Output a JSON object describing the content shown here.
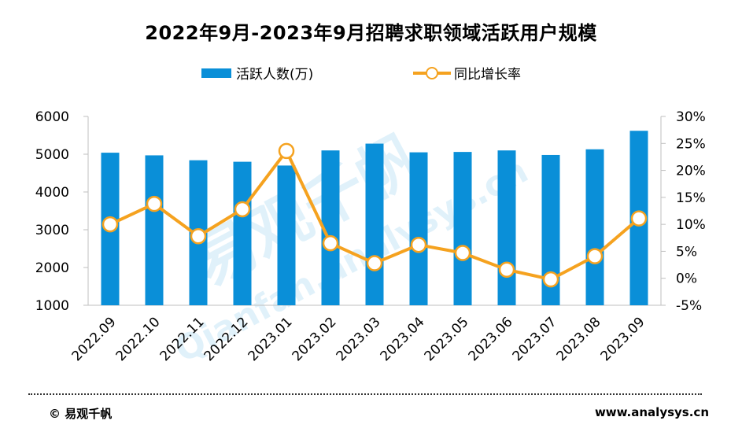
{
  "title": "2022年9月-2023年9月招聘求职领域活跃用户规模",
  "legend": {
    "bar_label": "活跃人数(万)",
    "line_label": "同比增长率"
  },
  "footer": {
    "left": "© 易观千帆",
    "right": "www.analysys.cn"
  },
  "watermark": {
    "text_cn": "易观千帆",
    "text_en": "Qianfan.analysys.cn"
  },
  "colors": {
    "bar": "#0A8FD8",
    "line": "#F5A21F",
    "axis": "#BFBFBF"
  },
  "chart_data": {
    "type": "bar",
    "categories": [
      "2022.09",
      "2022.10",
      "2022.11",
      "2022.12",
      "2023.01",
      "2023.02",
      "2023.03",
      "2023.04",
      "2023.05",
      "2023.06",
      "2023.07",
      "2023.08",
      "2023.09"
    ],
    "series": [
      {
        "name": "活跃人数(万)",
        "type": "bar",
        "axis": "left",
        "values": [
          5040,
          4970,
          4840,
          4800,
          4700,
          5100,
          5280,
          5050,
          5060,
          5100,
          4980,
          5130,
          5620
        ]
      },
      {
        "name": "同比增长率",
        "type": "line",
        "axis": "right",
        "values": [
          10.0,
          13.8,
          7.8,
          12.8,
          23.6,
          6.5,
          2.8,
          6.2,
          4.7,
          1.6,
          -0.2,
          4.1,
          11.1
        ]
      }
    ],
    "y_left": {
      "min": 1000,
      "max": 6000,
      "ticks": [
        "1000",
        "2000",
        "3000",
        "4000",
        "5000",
        "6000"
      ]
    },
    "y_right": {
      "min": -5,
      "max": 30,
      "ticks": [
        "-5%",
        "0%",
        "5%",
        "10%",
        "15%",
        "20%",
        "25%",
        "30%"
      ]
    },
    "legend_position": "top-center",
    "grid": false
  }
}
